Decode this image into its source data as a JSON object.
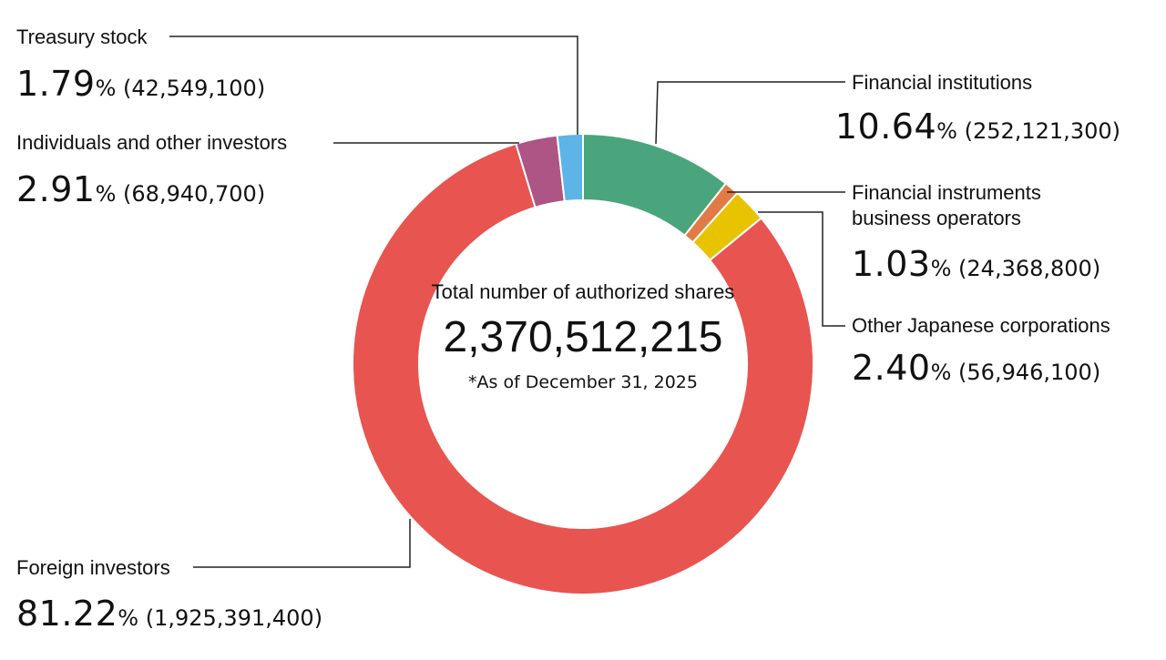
{
  "chart_data": {
    "type": "pie",
    "center": {
      "caption": "Total number of authorized shares",
      "total": "2,370,512,215",
      "note": "*As of December 31, 2025"
    },
    "slices": [
      {
        "label": "Financial institutions",
        "percent": 10.64,
        "percent_text": "10.64",
        "shares": "252,121,300",
        "color": "#4aa57c"
      },
      {
        "label": "Financial instruments business operators",
        "percent": 1.03,
        "percent_text": "1.03",
        "shares": "24,368,800",
        "color": "#e07b48"
      },
      {
        "label": "Other Japanese corporations",
        "percent": 2.4,
        "percent_text": "2.40",
        "shares": "56,946,100",
        "color": "#e8c300"
      },
      {
        "label": "Foreign investors",
        "percent": 81.22,
        "percent_text": "81.22",
        "shares": "1,925,391,400",
        "color": "#e8544f"
      },
      {
        "label": "Individuals and other investors",
        "percent": 2.91,
        "percent_text": "2.91",
        "shares": "68,940,700",
        "color": "#ad5584"
      },
      {
        "label": "Treasury stock",
        "percent": 1.79,
        "percent_text": "1.79",
        "shares": "42,549,100",
        "color": "#5db4e6"
      }
    ]
  }
}
